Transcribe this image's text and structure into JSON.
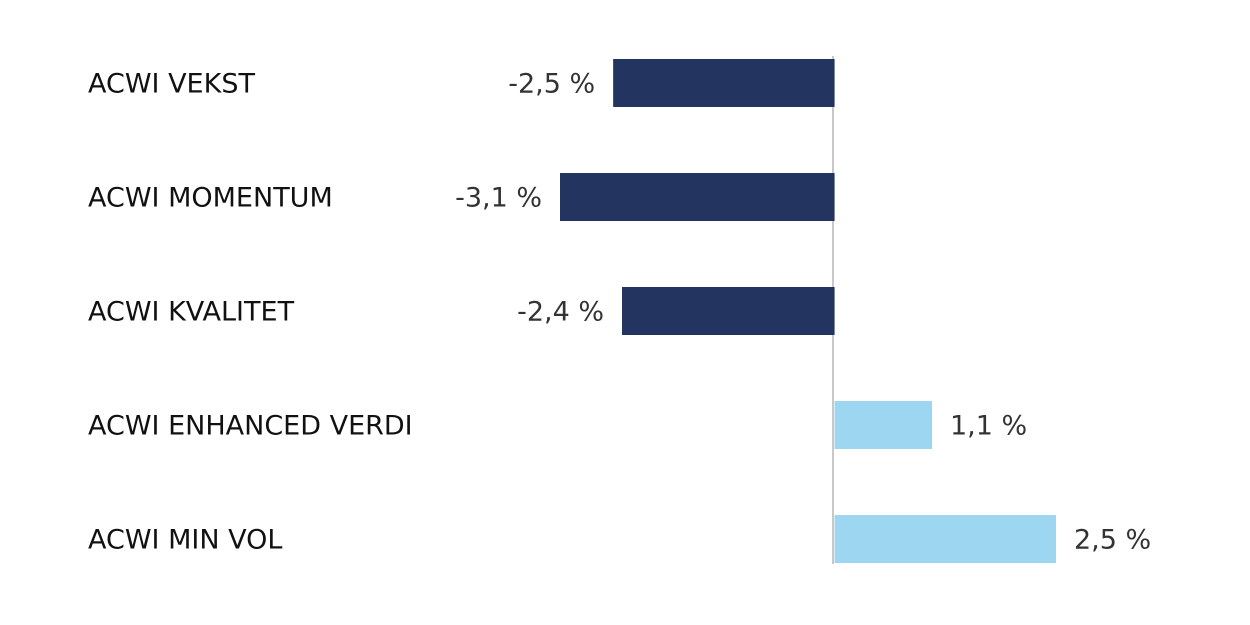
{
  "chart_data": {
    "type": "barh",
    "categories": [
      "ACWI VEKST",
      "ACWI MOMENTUM",
      "ACWI KVALITET",
      "ACWI ENHANCED VERDI",
      "ACWI MIN VOL"
    ],
    "values": [
      -2.5,
      -3.1,
      -2.4,
      1.1,
      2.5
    ],
    "value_labels": [
      "-2,5 %",
      "-3,1 %",
      "-2,4 %",
      "1,1 %",
      "2,5 %"
    ],
    "colors": [
      "#233461",
      "#233461",
      "#233461",
      "#9dd6f0",
      "#9dd6f0"
    ]
  }
}
